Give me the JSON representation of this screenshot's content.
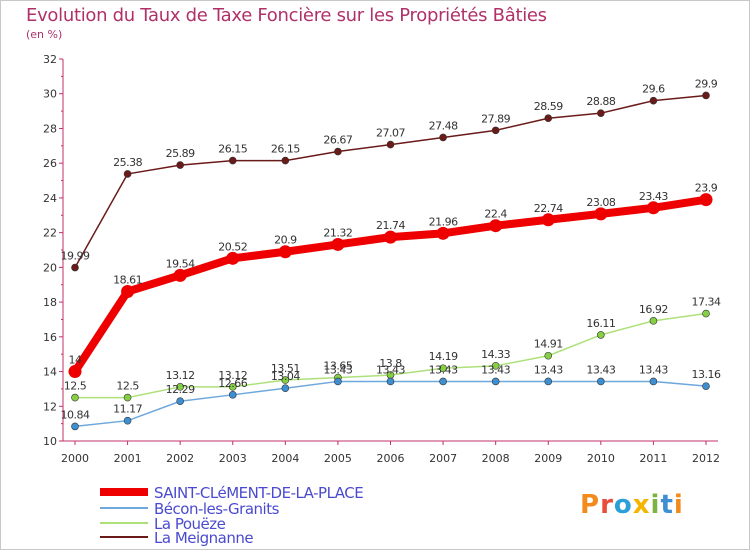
{
  "header": {
    "title": "Evolution du Taux de Taxe Foncière sur les Propriétés Bâties",
    "unit": "(en %)"
  },
  "logo": {
    "text": "Proxiti"
  },
  "chart_data": {
    "type": "line",
    "x": [
      "2000",
      "2001",
      "2002",
      "2003",
      "2004",
      "2005",
      "2006",
      "2007",
      "2008",
      "2009",
      "2010",
      "2011",
      "2012"
    ],
    "ylim": [
      10,
      32
    ],
    "yticks": [
      10,
      12,
      14,
      16,
      18,
      20,
      22,
      24,
      26,
      28,
      30,
      32
    ],
    "grid": false,
    "legend_position": "bottom-left",
    "series": [
      {
        "name": "La Meignanne",
        "color": "#6b1a1a",
        "marker": "#6b1a1a",
        "values": [
          19.99,
          25.38,
          25.89,
          26.15,
          26.15,
          26.67,
          27.07,
          27.48,
          27.89,
          28.59,
          28.88,
          29.6,
          29.9
        ],
        "labels": [
          "19.99",
          "25.38",
          "25.89",
          "26.15",
          "26.15",
          "26.67",
          "27.07",
          "27.48",
          "27.89",
          "28.59",
          "28.88",
          "29.6",
          "29.9"
        ]
      },
      {
        "name": "SAINT-CLéMENT-DE-LA-PLACE",
        "color": "#ee0000",
        "marker": "#ee0000",
        "values": [
          14,
          18.61,
          19.54,
          20.52,
          20.9,
          21.32,
          21.74,
          21.96,
          22.4,
          22.74,
          23.08,
          23.43,
          23.9
        ],
        "labels": [
          "14",
          "18.61",
          "19.54",
          "20.52",
          "20.9",
          "21.32",
          "21.74",
          "21.96",
          "22.4",
          "22.74",
          "23.08",
          "23.43",
          "23.9"
        ]
      },
      {
        "name": "La Pouëze",
        "color": "#aee07a",
        "marker": "#86cf45",
        "values": [
          12.5,
          12.5,
          13.12,
          13.12,
          13.51,
          13.65,
          13.8,
          14.19,
          14.33,
          14.91,
          16.11,
          16.92,
          17.34
        ],
        "labels": [
          "12.5",
          "12.5",
          "13.12",
          "13.12",
          "13.51",
          "13.65",
          "13.8",
          "14.19",
          "14.33",
          "14.91",
          "16.11",
          "16.92",
          "17.34"
        ]
      },
      {
        "name": "Bécon-les-Granits",
        "color": "#6fa8dc",
        "marker": "#3d8fd1",
        "values": [
          10.84,
          11.17,
          12.29,
          12.66,
          13.04,
          13.43,
          13.43,
          13.43,
          13.43,
          13.43,
          13.43,
          13.43,
          13.16
        ],
        "labels": [
          "10.84",
          "11.17",
          "12.29",
          "12.66",
          "13.04",
          "13.43",
          "13.43",
          "13.43",
          "13.43",
          "13.43",
          "13.43",
          "13.43",
          "13.16"
        ]
      }
    ],
    "legend": [
      "SAINT-CLéMENT-DE-LA-PLACE",
      "Bécon-les-Granits",
      "La Pouëze",
      "La Meignanne"
    ]
  }
}
